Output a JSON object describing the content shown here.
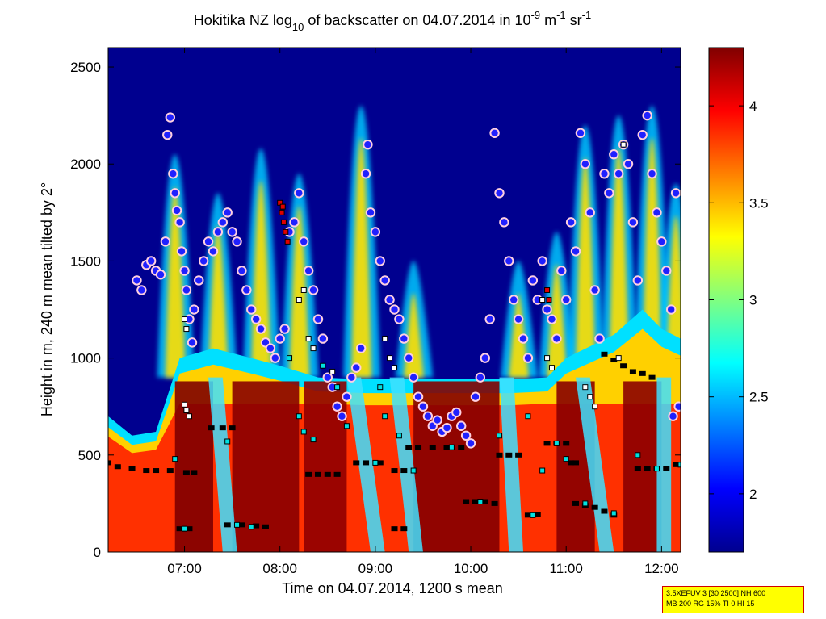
{
  "chart_data": {
    "type": "heatmap",
    "title": {
      "prefix": "Hokitika NZ log",
      "sub": "10",
      "middle": " of backscatter on 04.07.2014 in 10",
      "exp1": "-9",
      "unit1": " m",
      "exp2": "-1",
      "unit2": " sr",
      "exp3": "-1"
    },
    "xlabel": "Time on 04.07.2014, 1200 s mean",
    "ylabel": "Height in m, 240 m mean tilted by 2°",
    "xlim": [
      6.2,
      12.2
    ],
    "ylim": [
      0,
      2600
    ],
    "x_ticks": [
      {
        "value": 7,
        "label": "07:00"
      },
      {
        "value": 8,
        "label": "08:00"
      },
      {
        "value": 9,
        "label": "09:00"
      },
      {
        "value": 10,
        "label": "10:00"
      },
      {
        "value": 11,
        "label": "11:00"
      },
      {
        "value": 12,
        "label": "12:00"
      }
    ],
    "y_ticks": [
      {
        "value": 0,
        "label": "0"
      },
      {
        "value": 500,
        "label": "500"
      },
      {
        "value": 1000,
        "label": "1000"
      },
      {
        "value": 1500,
        "label": "1500"
      },
      {
        "value": 2000,
        "label": "2000"
      },
      {
        "value": 2500,
        "label": "2500"
      }
    ],
    "colorbar": {
      "range": [
        1.7,
        4.3
      ],
      "ticks": [
        {
          "value": 2,
          "label": "2"
        },
        {
          "value": 2.5,
          "label": "2.5"
        },
        {
          "value": 3,
          "label": "3"
        },
        {
          "value": 3.5,
          "label": "3.5"
        },
        {
          "value": 4,
          "label": "4"
        }
      ],
      "colormap": "jet"
    },
    "boundary_layer_top": [
      [
        6.2,
        700
      ],
      [
        6.45,
        600
      ],
      [
        6.7,
        620
      ],
      [
        6.95,
        1000
      ],
      [
        7.3,
        1050
      ],
      [
        7.7,
        1000
      ],
      [
        8.0,
        960
      ],
      [
        8.4,
        900
      ],
      [
        8.9,
        890
      ],
      [
        9.4,
        890
      ],
      [
        9.9,
        890
      ],
      [
        10.4,
        890
      ],
      [
        10.8,
        900
      ],
      [
        11.0,
        1000
      ],
      [
        11.5,
        1120
      ],
      [
        11.8,
        1250
      ],
      [
        12.0,
        1150
      ],
      [
        12.2,
        1100
      ]
    ],
    "plume_tops": [
      {
        "t": 6.9,
        "top": 2050
      },
      {
        "t": 7.35,
        "top": 1850
      },
      {
        "t": 7.8,
        "top": 2080
      },
      {
        "t": 8.2,
        "top": 1950
      },
      {
        "t": 8.85,
        "top": 2300
      },
      {
        "t": 9.4,
        "top": 1500
      },
      {
        "t": 10.5,
        "top": 1500
      },
      {
        "t": 10.9,
        "top": 1650
      },
      {
        "t": 11.2,
        "top": 2200
      },
      {
        "t": 11.55,
        "top": 2250
      },
      {
        "t": 11.9,
        "top": 2300
      },
      {
        "t": 12.15,
        "top": 1900
      }
    ],
    "cloud_points": [
      [
        6.5,
        1400
      ],
      [
        6.55,
        1350
      ],
      [
        6.6,
        1480
      ],
      [
        6.65,
        1500
      ],
      [
        6.7,
        1450
      ],
      [
        6.75,
        1430
      ],
      [
        6.8,
        1600
      ],
      [
        6.82,
        2150
      ],
      [
        6.85,
        2240
      ],
      [
        6.88,
        1950
      ],
      [
        6.9,
        1850
      ],
      [
        6.92,
        1760
      ],
      [
        6.95,
        1700
      ],
      [
        6.97,
        1550
      ],
      [
        7.0,
        1450
      ],
      [
        7.02,
        1350
      ],
      [
        7.05,
        1200
      ],
      [
        7.08,
        1080
      ],
      [
        7.1,
        1250
      ],
      [
        7.15,
        1400
      ],
      [
        7.2,
        1500
      ],
      [
        7.25,
        1600
      ],
      [
        7.3,
        1550
      ],
      [
        7.35,
        1650
      ],
      [
        7.4,
        1700
      ],
      [
        7.45,
        1750
      ],
      [
        7.5,
        1650
      ],
      [
        7.55,
        1600
      ],
      [
        7.6,
        1450
      ],
      [
        7.65,
        1350
      ],
      [
        7.7,
        1250
      ],
      [
        7.75,
        1200
      ],
      [
        7.8,
        1150
      ],
      [
        7.85,
        1080
      ],
      [
        7.9,
        1050
      ],
      [
        7.95,
        1000
      ],
      [
        8.0,
        1100
      ],
      [
        8.05,
        1150
      ],
      [
        8.1,
        1650
      ],
      [
        8.15,
        1700
      ],
      [
        8.2,
        1850
      ],
      [
        8.25,
        1600
      ],
      [
        8.3,
        1450
      ],
      [
        8.35,
        1350
      ],
      [
        8.4,
        1200
      ],
      [
        8.45,
        1100
      ],
      [
        8.5,
        900
      ],
      [
        8.55,
        850
      ],
      [
        8.6,
        750
      ],
      [
        8.65,
        700
      ],
      [
        8.7,
        800
      ],
      [
        8.75,
        900
      ],
      [
        8.8,
        950
      ],
      [
        8.85,
        1050
      ],
      [
        8.9,
        1950
      ],
      [
        8.92,
        2100
      ],
      [
        8.95,
        1750
      ],
      [
        9.0,
        1650
      ],
      [
        9.05,
        1500
      ],
      [
        9.1,
        1400
      ],
      [
        9.15,
        1300
      ],
      [
        9.2,
        1250
      ],
      [
        9.25,
        1200
      ],
      [
        9.3,
        1100
      ],
      [
        9.35,
        1000
      ],
      [
        9.4,
        900
      ],
      [
        9.45,
        800
      ],
      [
        9.5,
        750
      ],
      [
        9.55,
        700
      ],
      [
        9.6,
        650
      ],
      [
        9.65,
        680
      ],
      [
        9.7,
        620
      ],
      [
        9.75,
        640
      ],
      [
        9.8,
        700
      ],
      [
        9.85,
        720
      ],
      [
        9.9,
        650
      ],
      [
        9.95,
        600
      ],
      [
        10.0,
        560
      ],
      [
        10.05,
        800
      ],
      [
        10.1,
        900
      ],
      [
        10.15,
        1000
      ],
      [
        10.2,
        1200
      ],
      [
        10.25,
        2160
      ],
      [
        10.3,
        1850
      ],
      [
        10.35,
        1700
      ],
      [
        10.4,
        1500
      ],
      [
        10.45,
        1300
      ],
      [
        10.5,
        1200
      ],
      [
        10.55,
        1100
      ],
      [
        10.6,
        1000
      ],
      [
        10.65,
        1400
      ],
      [
        10.7,
        1300
      ],
      [
        10.75,
        1500
      ],
      [
        10.8,
        1250
      ],
      [
        10.85,
        1200
      ],
      [
        10.9,
        1100
      ],
      [
        10.95,
        1450
      ],
      [
        11.0,
        1300
      ],
      [
        11.05,
        1700
      ],
      [
        11.1,
        1550
      ],
      [
        11.15,
        2160
      ],
      [
        11.2,
        2000
      ],
      [
        11.25,
        1750
      ],
      [
        11.3,
        1350
      ],
      [
        11.35,
        1100
      ],
      [
        11.4,
        1950
      ],
      [
        11.45,
        1850
      ],
      [
        11.5,
        2050
      ],
      [
        11.55,
        1950
      ],
      [
        11.6,
        2100
      ],
      [
        11.65,
        2000
      ],
      [
        11.7,
        1700
      ],
      [
        11.75,
        1400
      ],
      [
        11.8,
        2150
      ],
      [
        11.85,
        2250
      ],
      [
        11.9,
        1950
      ],
      [
        11.95,
        1750
      ],
      [
        12.0,
        1600
      ],
      [
        12.05,
        1450
      ],
      [
        12.1,
        1250
      ],
      [
        12.15,
        1850
      ],
      [
        12.18,
        750
      ],
      [
        12.12,
        700
      ]
    ],
    "cloud_base_black": [
      [
        6.2,
        460
      ],
      [
        6.3,
        440
      ],
      [
        6.45,
        430
      ],
      [
        6.6,
        420
      ],
      [
        6.7,
        420
      ],
      [
        6.85,
        420
      ],
      [
        7.02,
        410
      ],
      [
        7.1,
        410
      ],
      [
        7.28,
        640
      ],
      [
        7.4,
        640
      ],
      [
        7.5,
        640
      ],
      [
        6.95,
        120
      ],
      [
        7.05,
        120
      ],
      [
        7.45,
        140
      ],
      [
        7.6,
        140
      ],
      [
        7.75,
        135
      ],
      [
        7.85,
        130
      ],
      [
        8.3,
        400
      ],
      [
        8.4,
        400
      ],
      [
        8.5,
        400
      ],
      [
        8.6,
        400
      ],
      [
        8.8,
        460
      ],
      [
        8.9,
        460
      ],
      [
        9.05,
        460
      ],
      [
        9.2,
        420
      ],
      [
        9.3,
        420
      ],
      [
        9.2,
        120
      ],
      [
        9.3,
        120
      ],
      [
        9.35,
        540
      ],
      [
        9.45,
        540
      ],
      [
        9.6,
        540
      ],
      [
        9.75,
        540
      ],
      [
        9.9,
        540
      ],
      [
        9.95,
        260
      ],
      [
        10.05,
        260
      ],
      [
        10.15,
        260
      ],
      [
        10.25,
        250
      ],
      [
        10.3,
        500
      ],
      [
        10.4,
        500
      ],
      [
        10.5,
        500
      ],
      [
        10.6,
        190
      ],
      [
        10.7,
        195
      ],
      [
        10.8,
        560
      ],
      [
        10.9,
        560
      ],
      [
        11.0,
        560
      ],
      [
        11.05,
        460
      ],
      [
        11.1,
        460
      ],
      [
        11.1,
        250
      ],
      [
        11.2,
        240
      ],
      [
        11.3,
        230
      ],
      [
        11.4,
        210
      ],
      [
        11.5,
        190
      ],
      [
        11.4,
        1020
      ],
      [
        11.5,
        990
      ],
      [
        11.6,
        960
      ],
      [
        11.7,
        930
      ],
      [
        11.8,
        920
      ],
      [
        11.9,
        900
      ],
      [
        11.75,
        430
      ],
      [
        11.85,
        430
      ],
      [
        11.95,
        430
      ],
      [
        12.05,
        430
      ],
      [
        12.15,
        450
      ]
    ],
    "white_markers": [
      [
        7.0,
        1200
      ],
      [
        7.02,
        1150
      ],
      [
        8.2,
        1300
      ],
      [
        8.25,
        1350
      ],
      [
        8.3,
        1100
      ],
      [
        8.35,
        1050
      ],
      [
        8.55,
        930
      ],
      [
        9.1,
        1100
      ],
      [
        9.15,
        1000
      ],
      [
        9.2,
        950
      ],
      [
        10.75,
        1300
      ],
      [
        10.8,
        1000
      ],
      [
        10.85,
        950
      ],
      [
        11.6,
        2100
      ],
      [
        11.55,
        1000
      ],
      [
        11.2,
        850
      ],
      [
        11.25,
        800
      ],
      [
        11.3,
        750
      ],
      [
        7.0,
        760
      ],
      [
        7.02,
        730
      ],
      [
        7.05,
        700
      ]
    ],
    "cyan_markers": [
      [
        6.9,
        480
      ],
      [
        7.0,
        120
      ],
      [
        7.45,
        570
      ],
      [
        7.55,
        140
      ],
      [
        7.7,
        130
      ],
      [
        8.1,
        1000
      ],
      [
        8.2,
        700
      ],
      [
        8.25,
        620
      ],
      [
        8.35,
        580
      ],
      [
        8.45,
        960
      ],
      [
        8.6,
        850
      ],
      [
        8.7,
        650
      ],
      [
        9.0,
        460
      ],
      [
        9.05,
        850
      ],
      [
        9.1,
        700
      ],
      [
        9.25,
        600
      ],
      [
        9.4,
        420
      ],
      [
        9.8,
        540
      ],
      [
        10.1,
        260
      ],
      [
        10.3,
        600
      ],
      [
        10.6,
        700
      ],
      [
        10.65,
        190
      ],
      [
        10.75,
        420
      ],
      [
        10.9,
        560
      ],
      [
        11.0,
        480
      ],
      [
        11.2,
        250
      ],
      [
        11.5,
        200
      ],
      [
        11.75,
        500
      ],
      [
        11.95,
        430
      ],
      [
        12.2,
        450
      ]
    ],
    "red_markers": [
      [
        8.0,
        1800
      ],
      [
        8.02,
        1750
      ],
      [
        8.04,
        1700
      ],
      [
        8.06,
        1650
      ],
      [
        8.08,
        1600
      ],
      [
        8.03,
        1780
      ],
      [
        10.8,
        1350
      ],
      [
        10.82,
        1300
      ]
    ],
    "info_box": [
      "3.5XEFUV 3 [30 2500] NH 600",
      "MB 200 RG 15% TI 0 HI 15"
    ]
  }
}
